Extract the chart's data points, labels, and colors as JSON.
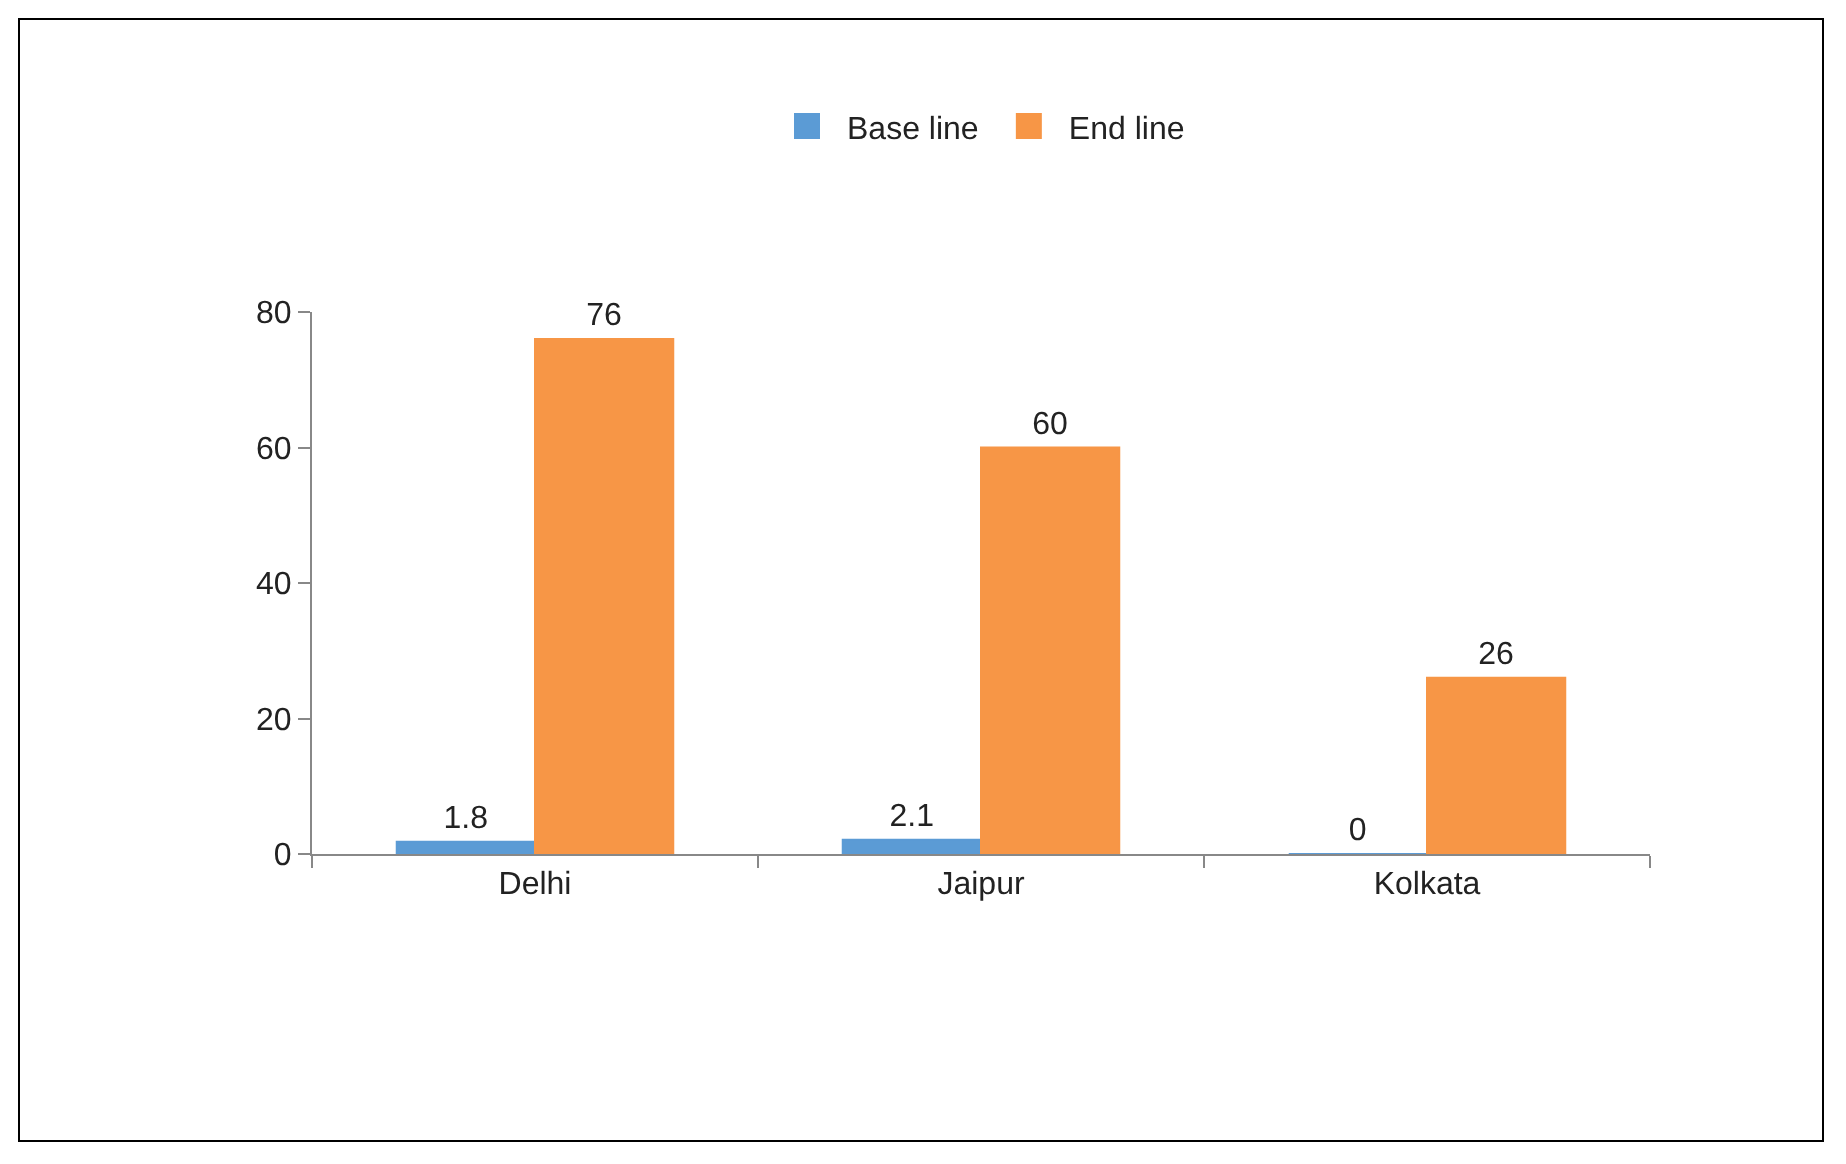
{
  "chart_data": {
    "type": "bar",
    "categories": [
      "Delhi",
      "Jaipur",
      "Kolkata"
    ],
    "series": [
      {
        "name": "Base line",
        "color": "#5b9bd5",
        "values": [
          1.8,
          2.1,
          0
        ]
      },
      {
        "name": "End line",
        "color": "#f79646",
        "values": [
          76,
          60,
          26
        ]
      }
    ],
    "ylim": [
      0,
      80
    ],
    "yticks": [
      0,
      20,
      40,
      60,
      80
    ],
    "grid": false,
    "legend": "top",
    "data_labels": true
  }
}
